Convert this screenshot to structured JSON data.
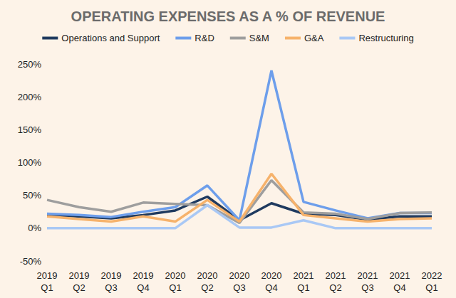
{
  "chart_data": {
    "type": "line",
    "title": "OPERATING EXPENSES AS A % OF REVENUE",
    "categories": [
      "2019\nQ1",
      "2019\nQ2",
      "2019\nQ3",
      "2019\nQ4",
      "2020\nQ1",
      "2020\nQ2",
      "2020\nQ3",
      "2020\nQ4",
      "2021\nQ1",
      "2021\nQ2",
      "2021\nQ3",
      "2021\nQ4",
      "2022\nQ1"
    ],
    "series": [
      {
        "name": "Operations and Support",
        "color": "#1f3a5f",
        "values": [
          20,
          18,
          15,
          20,
          27,
          48,
          12,
          38,
          22,
          20,
          13,
          18,
          18
        ]
      },
      {
        "name": "R&D",
        "color": "#6d9eeb",
        "values": [
          22,
          20,
          17,
          25,
          32,
          65,
          12,
          240,
          40,
          27,
          15,
          23,
          23
        ]
      },
      {
        "name": "S&M",
        "color": "#9e9e9e",
        "values": [
          43,
          32,
          25,
          39,
          37,
          35,
          8,
          73,
          24,
          22,
          14,
          23,
          24
        ]
      },
      {
        "name": "G&A",
        "color": "#f6b26b",
        "values": [
          18,
          14,
          10,
          18,
          10,
          43,
          10,
          83,
          20,
          15,
          10,
          14,
          15
        ]
      },
      {
        "name": "Restructuring",
        "color": "#a9c8f5",
        "values": [
          0,
          0,
          0,
          0,
          0,
          35,
          1,
          1,
          12,
          0,
          0,
          0,
          0
        ]
      }
    ],
    "ylim": [
      -50,
      250
    ],
    "yticks": [
      {
        "value": -50,
        "label": "-50%"
      },
      {
        "value": 0,
        "label": "0%"
      },
      {
        "value": 50,
        "label": "50%"
      },
      {
        "value": 100,
        "label": "100%"
      },
      {
        "value": 150,
        "label": "150%"
      },
      {
        "value": 200,
        "label": "200%"
      },
      {
        "value": 250,
        "label": "250%"
      }
    ],
    "grid": false,
    "legend": "top"
  }
}
